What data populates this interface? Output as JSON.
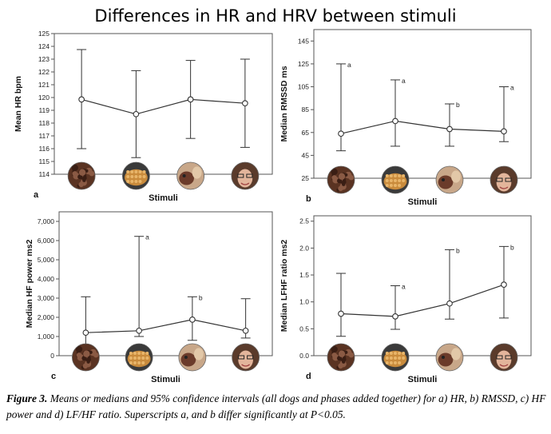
{
  "figure_title": "Differences in HR and HRV between stimuli",
  "caption": {
    "label": "Figure 3.",
    "text": " Means or medians and  95% confidence intervals (all dogs and phases added together) for a) HR, b) RMSSD, c) HF power and d) LF/HF ratio. Superscripts a, and b differ significantly at P<0.05."
  },
  "stimuli_icons": [
    "dog-photo",
    "food-photo",
    "dog-with-person-photo",
    "woman-face-photo"
  ],
  "colors": {
    "line": "#333333",
    "marker_fill": "#ffffff",
    "frame": "#555555"
  },
  "chart_data": [
    {
      "type": "line",
      "panel_letter": "a",
      "xlabel": "Stimuli",
      "ylabel": "Mean HR bpm",
      "ylim": [
        114,
        125
      ],
      "yticks": [
        114,
        115,
        116,
        117,
        118,
        119,
        120,
        121,
        122,
        123,
        124,
        125
      ],
      "ytick_labels": [
        "114",
        "115",
        "116",
        "117",
        "118",
        "119",
        "120",
        "121",
        "122",
        "123",
        "124",
        "125"
      ],
      "categories": [
        "dog",
        "food",
        "dog with person",
        "woman"
      ],
      "values": [
        119.85,
        118.7,
        119.85,
        119.55
      ],
      "ci_low": [
        116.0,
        115.3,
        116.8,
        116.1
      ],
      "ci_high": [
        123.75,
        122.1,
        122.9,
        123.0
      ],
      "superscripts": [
        "",
        "",
        "",
        ""
      ]
    },
    {
      "type": "line",
      "panel_letter": "b",
      "xlabel": "Stimuli",
      "ylabel": "Median RMSSD ms",
      "ylim": [
        25,
        155
      ],
      "yticks": [
        25,
        45,
        65,
        85,
        105,
        125,
        145
      ],
      "ytick_labels": [
        "25",
        "45",
        "65",
        "85",
        "105",
        "125",
        "145"
      ],
      "categories": [
        "dog",
        "food",
        "dog with person",
        "woman"
      ],
      "values": [
        64,
        75,
        68,
        66
      ],
      "ci_low": [
        49,
        53,
        53,
        57
      ],
      "ci_high": [
        125,
        111,
        90,
        105
      ],
      "superscripts": [
        "a",
        "a",
        "b",
        "a"
      ]
    },
    {
      "type": "line",
      "panel_letter": "c",
      "xlabel": "Stimuli",
      "ylabel": "Median HF power ms2",
      "ylim": [
        0,
        7500
      ],
      "yticks": [
        0,
        1000,
        2000,
        3000,
        4000,
        5000,
        6000,
        7000
      ],
      "ytick_labels": [
        "0",
        "1,000",
        "2,000",
        "3,000",
        "4,000",
        "5,000",
        "6,000",
        "7,000"
      ],
      "categories": [
        "dog",
        "food",
        "dog with person",
        "woman"
      ],
      "values": [
        1200,
        1300,
        1880,
        1300
      ],
      "ci_low": [
        500,
        1000,
        800,
        920
      ],
      "ci_high": [
        3070,
        6220,
        3070,
        2970
      ],
      "superscripts": [
        "",
        "a",
        "b",
        ""
      ]
    },
    {
      "type": "line",
      "panel_letter": "d",
      "xlabel": "Stimuli",
      "ylabel": "Median LFHF ratio ms2",
      "ylim": [
        0,
        2.6
      ],
      "yticks": [
        0,
        0.5,
        1.0,
        1.5,
        2.0,
        2.5
      ],
      "ytick_labels": [
        "0.0",
        "0.5",
        "1.0",
        "1.5",
        "2.0",
        "2.5"
      ],
      "categories": [
        "dog",
        "food",
        "dog with person",
        "woman"
      ],
      "values": [
        0.78,
        0.73,
        0.97,
        1.32
      ],
      "ci_low": [
        0.36,
        0.49,
        0.68,
        0.7
      ],
      "ci_high": [
        1.53,
        1.3,
        1.97,
        2.03
      ],
      "superscripts": [
        "",
        "a",
        "b",
        "b"
      ]
    }
  ]
}
